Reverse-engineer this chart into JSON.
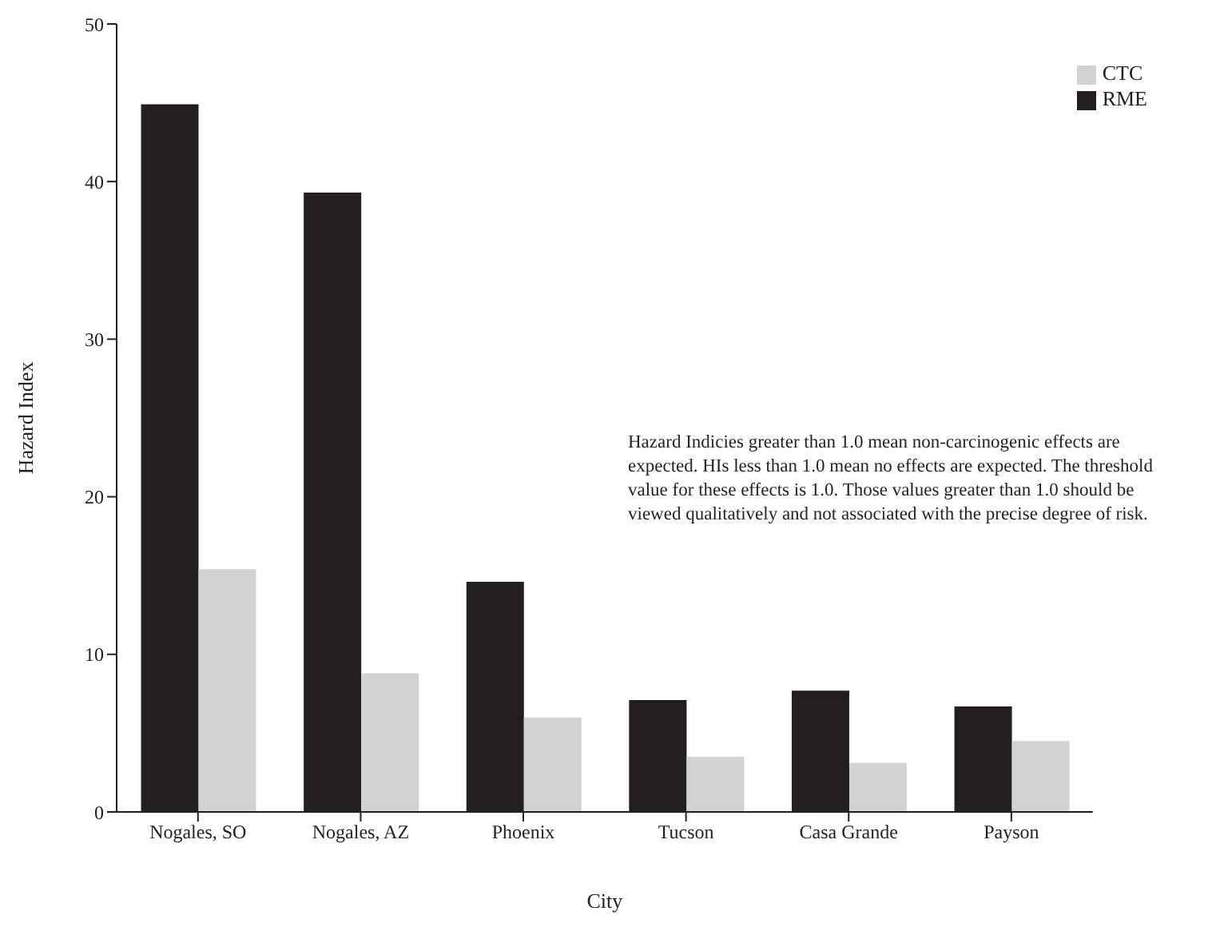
{
  "chart_data": {
    "type": "bar",
    "xlabel": "City",
    "ylabel": "Hazard Index",
    "categories": [
      "Nogales, SO",
      "Nogales, AZ",
      "Phoenix",
      "Tucson",
      "Casa Grande",
      "Payson"
    ],
    "series": [
      {
        "name": "RME",
        "color": "#231f20",
        "values": [
          44.9,
          39.3,
          14.6,
          7.1,
          7.7,
          6.7
        ]
      },
      {
        "name": "CTC",
        "color": "#d1d2d4",
        "values": [
          15.4,
          8.8,
          6.0,
          3.5,
          3.1,
          4.5
        ]
      }
    ],
    "ylim": [
      0,
      50
    ],
    "yticks": [
      0,
      10,
      20,
      30,
      40,
      50
    ],
    "grid": false,
    "legend": "top right",
    "annotations": [
      "Hazard Indicies greater than 1.0 mean non-carcinogenic effects are expected. HIs less than 1.0 mean no effects are expected. The threshold value for these effects is 1.0. Those values greater than 1.0 should be viewed qualitatively and not associated with the precise degree of risk."
    ]
  }
}
